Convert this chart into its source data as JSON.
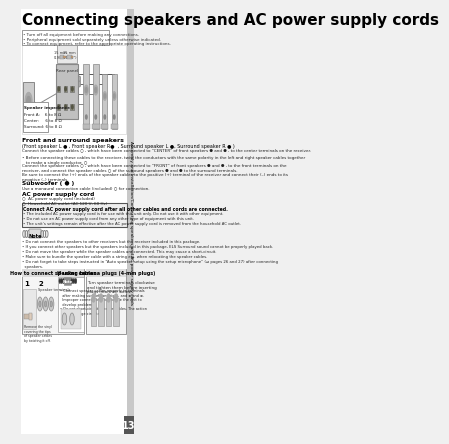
{
  "bg_color": "#f0f0f0",
  "title": "Connecting speakers and AC power supply cords",
  "title_fontsize": 11,
  "warning_lines": [
    "• Turn off all equipment before making any connections.",
    "• Peripheral equipment sold separately unless otherwise indicated.",
    "• To connect equipment, refer to the appropriate operating instructions."
  ],
  "impedance_lines": [
    "Speaker impedance",
    "Front A:    6 to 8 Ω",
    "Center:     6 to 8 Ω",
    "Surround: 6 to 8 Ω"
  ],
  "s1_title": "Front and surround speakers",
  "s1_sub": "(Front speaker L ● , Front speaker R●  , Surround speaker L ●, Surround speaker R ● )",
  "s1_t1": "Connect the speaker cables ○ , which have been connected to “CENTER” of front speakers ● and ● , to the center terminals on the receiver.",
  "s1_b1": "• Before connecting these cables to the receiver, twist the conductors with the same polarity in the left and right speaker cables together\n   to make a single conductor. ○",
  "s1_t2": "Connect the speaker cables ○ , which have been connected to “FRONT” of front speakers ● and ● , to the front terminals on the\nreceiver, and connect the speaker cables ○ of the surround speakers ● and ● to the surround terminals.",
  "s1_t3": "Be sure to connect the (+) ends of the speaker cables to the positive (+) terminal of the receiver and connect their (–) ends to its\nnegative (–) terminals.",
  "s2_title": "Subwoofer ( ● )",
  "s2_t1": "Use a monaural connection cable (included) ○ for connection.",
  "s3_title": "AC power supply cord",
  "s3_t1": "○  AC power supply cord (included)",
  "s3_t2": "○  Household AC outlet (AC 120 V, 60 Hz)",
  "s4_title": "Connect AC power supply cord after all other cables and cords are connected.",
  "s4_bullets": [
    "• The included AC power supply cord is for use with this unit only. Do not use it with other equipment.",
    "• Do not use an AC power supply cord from any other type of equipment with this unit.",
    "• The unit’s settings remain effective after the AC power supply cord is removed from the household AC outlet."
  ],
  "note_circles": "○○○ Note ○○○",
  "note_bullets": [
    "• Do not connect the speakers to other receivers but the receiver included in this package.",
    "• If you connect other speakers but the speakers included in this package, ELS Surround sound cannot be properly played back.",
    "• Do not move the speaker while the speaker cables are connected. This may cause a short-circuit.",
    "• Make sure to bundle the speaker cable with a string etc. when relocating the speaker cables.",
    "• Do not forget to take steps instructed in “Auto speaker setup using the setup microphone” (⇒ pages 26 and 27) after connecting\n  speakers."
  ],
  "howto_title": "How to connect speaker cables",
  "howto_note": "●●● Note ●●●",
  "howto_step1": "1",
  "howto_step2": "2",
  "howto_step2_label": "Speaker terminals",
  "howto_step1_desc": "Remove the vinyl\ncovering the tips\nof speaker cables\nby twisting it off.",
  "howto_note_text": "• Connect speaker cables properly to terminals\n  after making sure left and right, and ⊕ and ⊖.\n  Improper connections may cause the unit to\n  develop problems.\n• Do not short-circuit speaker cables. The action\n  may damage circuits.",
  "banana_title": "If using banana plugs (4-mm plugs)",
  "banana_text": "Turn speaker terminals clockwise\nand tighten them before inserting\nplugs into their holes.",
  "sidebar_text": "Assembly and Installation/Connecting speakers and AC power supply cords",
  "page_num": "13",
  "sidebar_color": "#b0b0b0",
  "sidebar_text_color": "#000000"
}
